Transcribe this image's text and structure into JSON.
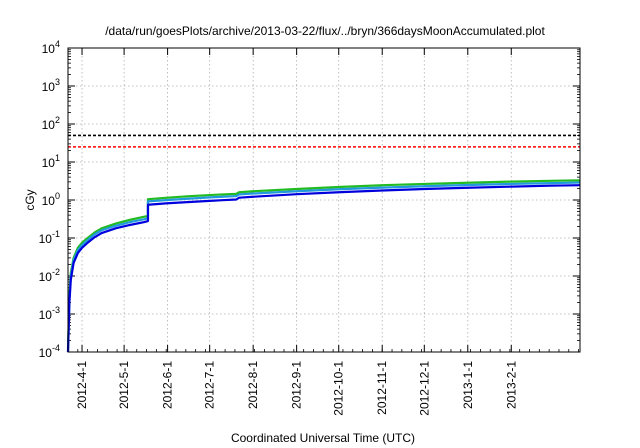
{
  "chart_data": {
    "type": "line",
    "title": "/data/run/goesPlots/archive/2013-03-22/flux/../bryn/366daysMoonAccumulated.plot",
    "xlabel": "Coordinated Universal Time (UTC)",
    "ylabel": "cGy",
    "yscale": "log",
    "ylim": [
      0.0001,
      10000
    ],
    "xlim": [
      "2012-03-22",
      "2013-03-22"
    ],
    "grid": true,
    "legend": "none",
    "x_ticks": [
      {
        "date": "2012-04-01",
        "label": "2012-4-1"
      },
      {
        "date": "2012-05-01",
        "label": "2012-5-1"
      },
      {
        "date": "2012-06-01",
        "label": "2012-6-1"
      },
      {
        "date": "2012-07-01",
        "label": "2012-7-1"
      },
      {
        "date": "2012-08-01",
        "label": "2012-8-1"
      },
      {
        "date": "2012-09-01",
        "label": "2012-9-1"
      },
      {
        "date": "2012-10-01",
        "label": "2012-10-1"
      },
      {
        "date": "2012-11-01",
        "label": "2012-11-1"
      },
      {
        "date": "2012-12-01",
        "label": "2012-12-1"
      },
      {
        "date": "2013-01-01",
        "label": "2013-1-1"
      },
      {
        "date": "2013-02-01",
        "label": "2013-2-1"
      }
    ],
    "y_ticks": [
      {
        "value": 0.0001,
        "base": "10",
        "exp": "-4"
      },
      {
        "value": 0.001,
        "base": "10",
        "exp": "-3"
      },
      {
        "value": 0.01,
        "base": "10",
        "exp": "-2"
      },
      {
        "value": 0.1,
        "base": "10",
        "exp": "-1"
      },
      {
        "value": 1,
        "base": "10",
        "exp": "0"
      },
      {
        "value": 10,
        "base": "10",
        "exp": "1"
      },
      {
        "value": 100,
        "base": "10",
        "exp": "2"
      },
      {
        "value": 1000,
        "base": "10",
        "exp": "3"
      },
      {
        "value": 10000,
        "base": "10",
        "exp": "4"
      }
    ],
    "reference_lines": [
      {
        "y": 50,
        "color": "#000000",
        "style": "dashed"
      },
      {
        "y": 25,
        "color": "#ff0000",
        "style": "dashed"
      }
    ],
    "series": [
      {
        "color": "#22bb22",
        "x": [
          "2012-03-22",
          "2012-03-23",
          "2012-03-24",
          "2012-03-26",
          "2012-03-29",
          "2012-04-01",
          "2012-04-05",
          "2012-04-10",
          "2012-04-15",
          "2012-04-25",
          "2012-05-05",
          "2012-05-15",
          "2012-05-18",
          "2012-05-18",
          "2012-06-01",
          "2012-06-15",
          "2012-07-01",
          "2012-07-10",
          "2012-07-20",
          "2012-07-22",
          "2012-08-01",
          "2012-09-01",
          "2012-10-01",
          "2012-11-01",
          "2012-12-01",
          "2013-01-01",
          "2013-02-01",
          "2013-03-01",
          "2013-03-22"
        ],
        "y": [
          0.00012,
          0.003,
          0.012,
          0.03,
          0.055,
          0.075,
          0.1,
          0.14,
          0.18,
          0.24,
          0.3,
          0.36,
          0.38,
          1.05,
          1.15,
          1.25,
          1.35,
          1.4,
          1.45,
          1.6,
          1.7,
          1.95,
          2.2,
          2.45,
          2.65,
          2.85,
          3.05,
          3.2,
          3.3
        ]
      },
      {
        "color": "#2299dd",
        "x": [
          "2012-03-22",
          "2012-03-23",
          "2012-03-24",
          "2012-03-26",
          "2012-03-29",
          "2012-04-01",
          "2012-04-05",
          "2012-04-10",
          "2012-04-15",
          "2012-04-25",
          "2012-05-05",
          "2012-05-15",
          "2012-05-18",
          "2012-05-18",
          "2012-06-01",
          "2012-06-15",
          "2012-07-01",
          "2012-07-10",
          "2012-07-20",
          "2012-07-22",
          "2012-08-01",
          "2012-09-01",
          "2012-10-01",
          "2012-11-01",
          "2012-12-01",
          "2013-01-01",
          "2013-02-01",
          "2013-03-01",
          "2013-03-22"
        ],
        "y": [
          0.0001,
          0.0025,
          0.01,
          0.026,
          0.048,
          0.065,
          0.088,
          0.125,
          0.16,
          0.21,
          0.26,
          0.31,
          0.33,
          0.92,
          1.0,
          1.08,
          1.17,
          1.22,
          1.27,
          1.4,
          1.48,
          1.7,
          1.92,
          2.12,
          2.3,
          2.48,
          2.65,
          2.78,
          2.88
        ]
      },
      {
        "color": "#0000dd",
        "x": [
          "2012-03-22",
          "2012-03-23",
          "2012-03-24",
          "2012-03-26",
          "2012-03-29",
          "2012-04-01",
          "2012-04-05",
          "2012-04-10",
          "2012-04-15",
          "2012-04-25",
          "2012-05-05",
          "2012-05-15",
          "2012-05-18",
          "2012-05-18",
          "2012-06-01",
          "2012-06-15",
          "2012-07-01",
          "2012-07-10",
          "2012-07-20",
          "2012-07-22",
          "2012-08-01",
          "2012-09-01",
          "2012-10-01",
          "2012-11-01",
          "2012-12-01",
          "2013-01-01",
          "2013-02-01",
          "2013-03-01",
          "2013-03-22"
        ],
        "y": [
          0.0001,
          0.002,
          0.008,
          0.022,
          0.04,
          0.055,
          0.075,
          0.105,
          0.135,
          0.18,
          0.22,
          0.26,
          0.28,
          0.75,
          0.82,
          0.88,
          0.95,
          0.99,
          1.03,
          1.15,
          1.22,
          1.42,
          1.6,
          1.78,
          1.95,
          2.1,
          2.25,
          2.38,
          2.45
        ]
      }
    ]
  }
}
